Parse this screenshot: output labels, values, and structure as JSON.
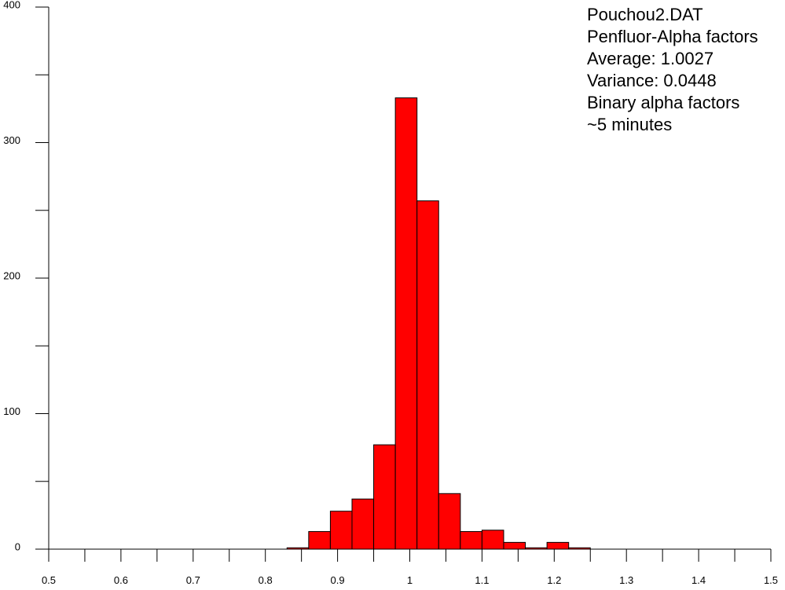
{
  "chart_data": {
    "type": "histogram",
    "bins": [
      0.83,
      0.86,
      0.89,
      0.92,
      0.95,
      0.98,
      1.01,
      1.04,
      1.07,
      1.1,
      1.13,
      1.16,
      1.19,
      1.22,
      1.25
    ],
    "values": [
      1,
      13,
      28,
      37,
      77,
      333,
      257,
      41,
      13,
      14,
      5,
      1,
      5,
      1
    ],
    "color": "#ff0000",
    "edgecolor": "#000000",
    "xlim": [
      0.5,
      1.5
    ],
    "xticks": [
      0.5,
      0.6,
      0.7,
      0.8,
      0.9,
      1,
      1.1,
      1.2,
      1.3,
      1.4,
      1.5
    ],
    "xminorticks": [
      0.55,
      0.65,
      0.75,
      0.85,
      0.95,
      1.05,
      1.15,
      1.25,
      1.35,
      1.45
    ],
    "ylim": [
      0,
      400
    ],
    "yticks": [
      0,
      100,
      200,
      300,
      400
    ],
    "yminorticks": [
      50,
      150,
      250,
      350
    ],
    "annotations": [
      "Pouchou2.DAT",
      "Penfluor-Alpha factors",
      "Average: 1.0027",
      "Variance: 0.0448",
      "Binary alpha factors",
      "~5 minutes"
    ]
  }
}
